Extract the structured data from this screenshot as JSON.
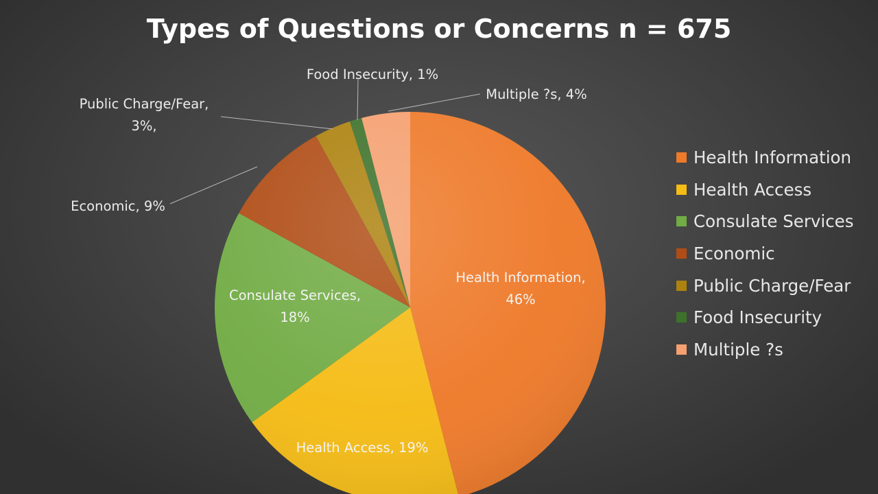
{
  "chart_data": {
    "type": "pie",
    "title": "Types of Questions or Concerns n = 675",
    "slices": [
      {
        "name": "Health Information",
        "value": 46,
        "label": [
          "Health Information,",
          "46%"
        ],
        "color": "#ee7a2a"
      },
      {
        "name": "Health Access",
        "value": 19,
        "label": [
          "Health Access, 19%"
        ],
        "color": "#f5bc16"
      },
      {
        "name": "Consulate Services",
        "value": 18,
        "label": [
          "Consulate Services,",
          "18%"
        ],
        "color": "#72ac45"
      },
      {
        "name": "Economic",
        "value": 9,
        "label": [
          "Economic, 9%"
        ],
        "color": "#b04d16"
      },
      {
        "name": "Public Charge/Fear",
        "value": 3,
        "label": [
          "Public Charge/Fear,",
          "3%,"
        ],
        "color": "#ad820f"
      },
      {
        "name": "Food Insecurity",
        "value": 1,
        "label": [
          "Food Insecurity, 1%"
        ],
        "color": "#3e722b"
      },
      {
        "name": "Multiple ?s",
        "value": 4,
        "label": [
          "Multiple ?s, 4%"
        ],
        "color": "#f5a070"
      }
    ],
    "legend": {
      "placement": "right",
      "entries": [
        "Health Information",
        "Health Access",
        "Consulate Services",
        "Economic",
        "Public Charge/Fear",
        "Food Insecurity",
        "Multiple ?s"
      ]
    }
  }
}
